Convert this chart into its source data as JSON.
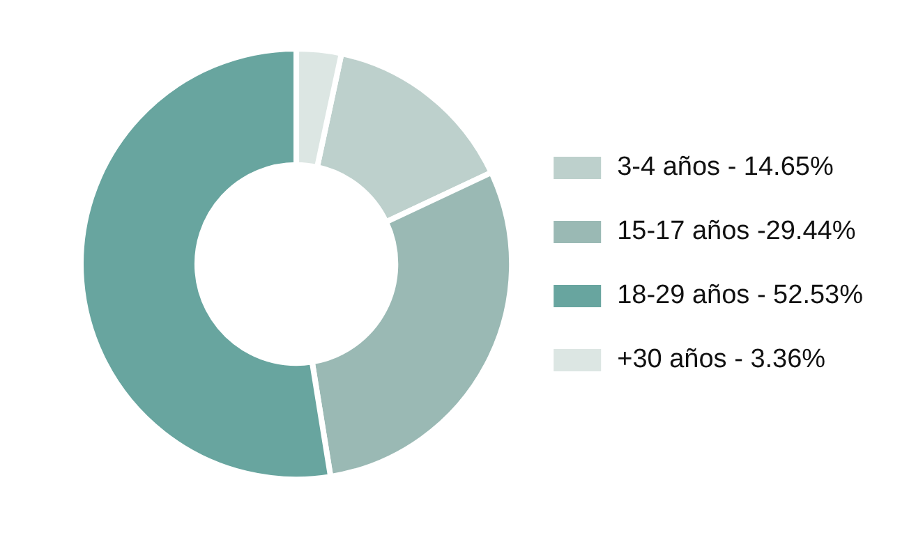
{
  "chart_data": {
    "type": "donut",
    "categories": [
      "3-4 años - 14.65%",
      "15-17 años -29.44%",
      "18-29 años - 52.53%",
      "+30 años - 3.36%"
    ],
    "values": [
      14.65,
      29.44,
      52.53,
      3.36
    ],
    "colors": [
      "#bdd0cc",
      "#9ab9b4",
      "#68a59f",
      "#dce6e3"
    ],
    "legend": "right"
  }
}
